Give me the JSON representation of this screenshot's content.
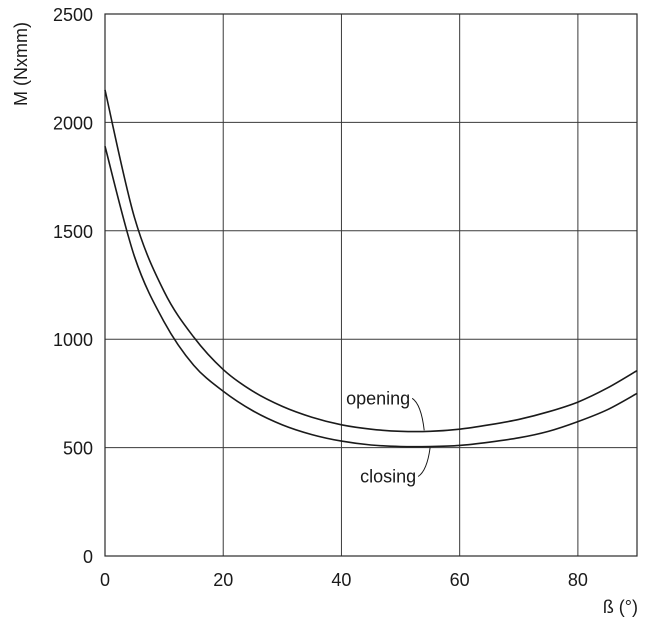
{
  "chart_data": {
    "type": "line",
    "title": "",
    "xlabel": "ß (°)",
    "ylabel": "M (Nxmm)",
    "xlim": [
      0,
      90
    ],
    "ylim": [
      0,
      2500
    ],
    "xticks": [
      0,
      20,
      40,
      60,
      80
    ],
    "yticks": [
      0,
      500,
      1000,
      1500,
      2000,
      2500
    ],
    "grid": true,
    "series": [
      {
        "name": "opening",
        "x": [
          0,
          5,
          10,
          15,
          20,
          25,
          30,
          35,
          40,
          45,
          50,
          55,
          60,
          65,
          70,
          75,
          80,
          85,
          90
        ],
        "y": [
          2150,
          1560,
          1220,
          1010,
          860,
          760,
          690,
          640,
          605,
          585,
          575,
          575,
          585,
          605,
          630,
          665,
          710,
          775,
          855
        ]
      },
      {
        "name": "closing",
        "x": [
          0,
          5,
          10,
          15,
          20,
          25,
          30,
          35,
          40,
          45,
          50,
          55,
          60,
          65,
          70,
          75,
          80,
          85,
          90
        ],
        "y": [
          1890,
          1380,
          1080,
          880,
          760,
          670,
          605,
          560,
          530,
          512,
          505,
          505,
          510,
          525,
          545,
          575,
          620,
          675,
          750
        ]
      }
    ]
  }
}
